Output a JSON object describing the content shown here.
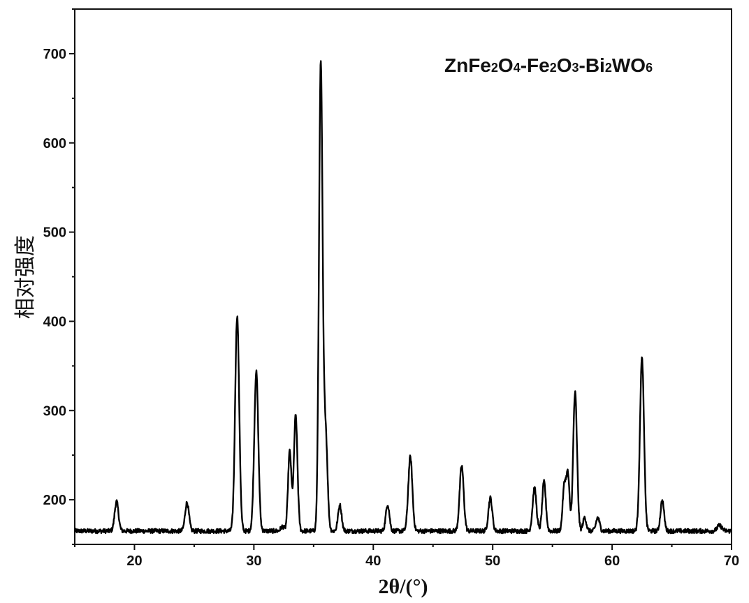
{
  "chart_data": {
    "type": "line",
    "title_parts": [
      {
        "text": "ZnFe",
        "sub": false
      },
      {
        "text": "2",
        "sub": true
      },
      {
        "text": "O",
        "sub": false
      },
      {
        "text": "4",
        "sub": true
      },
      {
        "text": "-Fe",
        "sub": false
      },
      {
        "text": "2",
        "sub": true
      },
      {
        "text": "O",
        "sub": false
      },
      {
        "text": "3",
        "sub": true
      },
      {
        "text": "-Bi",
        "sub": false
      },
      {
        "text": "2",
        "sub": true
      },
      {
        "text": "WO",
        "sub": false
      },
      {
        "text": "6",
        "sub": true
      }
    ],
    "xlabel": "2θ/(°)",
    "ylabel": "相对强度",
    "xlim": [
      15,
      70
    ],
    "ylim": [
      150,
      750
    ],
    "xticks": [
      20,
      30,
      40,
      50,
      60,
      70
    ],
    "yticks": [
      200,
      300,
      400,
      500,
      600,
      700
    ],
    "xtick_labels": [
      "20",
      "30",
      "40",
      "50",
      "60",
      "70"
    ],
    "ytick_labels": [
      "200",
      "300",
      "400",
      "500",
      "600",
      "700"
    ],
    "grid": false,
    "baseline": 165,
    "peaks": [
      {
        "x": 18.5,
        "height": 198,
        "width": 0.16
      },
      {
        "x": 24.4,
        "height": 197,
        "width": 0.16
      },
      {
        "x": 28.6,
        "height": 406,
        "width": 0.17
      },
      {
        "x": 30.2,
        "height": 343,
        "width": 0.17
      },
      {
        "x": 32.4,
        "height": 170,
        "width": 0.15
      },
      {
        "x": 33.0,
        "height": 254,
        "width": 0.14
      },
      {
        "x": 33.5,
        "height": 294,
        "width": 0.15
      },
      {
        "x": 35.6,
        "height": 686,
        "width": 0.15
      },
      {
        "x": 36.0,
        "height": 278,
        "width": 0.16
      },
      {
        "x": 37.2,
        "height": 194,
        "width": 0.15
      },
      {
        "x": 41.2,
        "height": 195,
        "width": 0.15
      },
      {
        "x": 43.1,
        "height": 248,
        "width": 0.17
      },
      {
        "x": 47.4,
        "height": 238,
        "width": 0.17
      },
      {
        "x": 49.8,
        "height": 202,
        "width": 0.16
      },
      {
        "x": 53.5,
        "height": 213,
        "width": 0.16
      },
      {
        "x": 54.3,
        "height": 220,
        "width": 0.15
      },
      {
        "x": 56.0,
        "height": 216,
        "width": 0.14
      },
      {
        "x": 56.3,
        "height": 226,
        "width": 0.13
      },
      {
        "x": 56.9,
        "height": 320,
        "width": 0.16
      },
      {
        "x": 57.7,
        "height": 180,
        "width": 0.14
      },
      {
        "x": 58.8,
        "height": 180,
        "width": 0.15
      },
      {
        "x": 62.5,
        "height": 358,
        "width": 0.17
      },
      {
        "x": 64.2,
        "height": 199,
        "width": 0.15
      },
      {
        "x": 69.0,
        "height": 171,
        "width": 0.2
      }
    ],
    "line_color": "#000000",
    "axis_color": "#111111"
  }
}
